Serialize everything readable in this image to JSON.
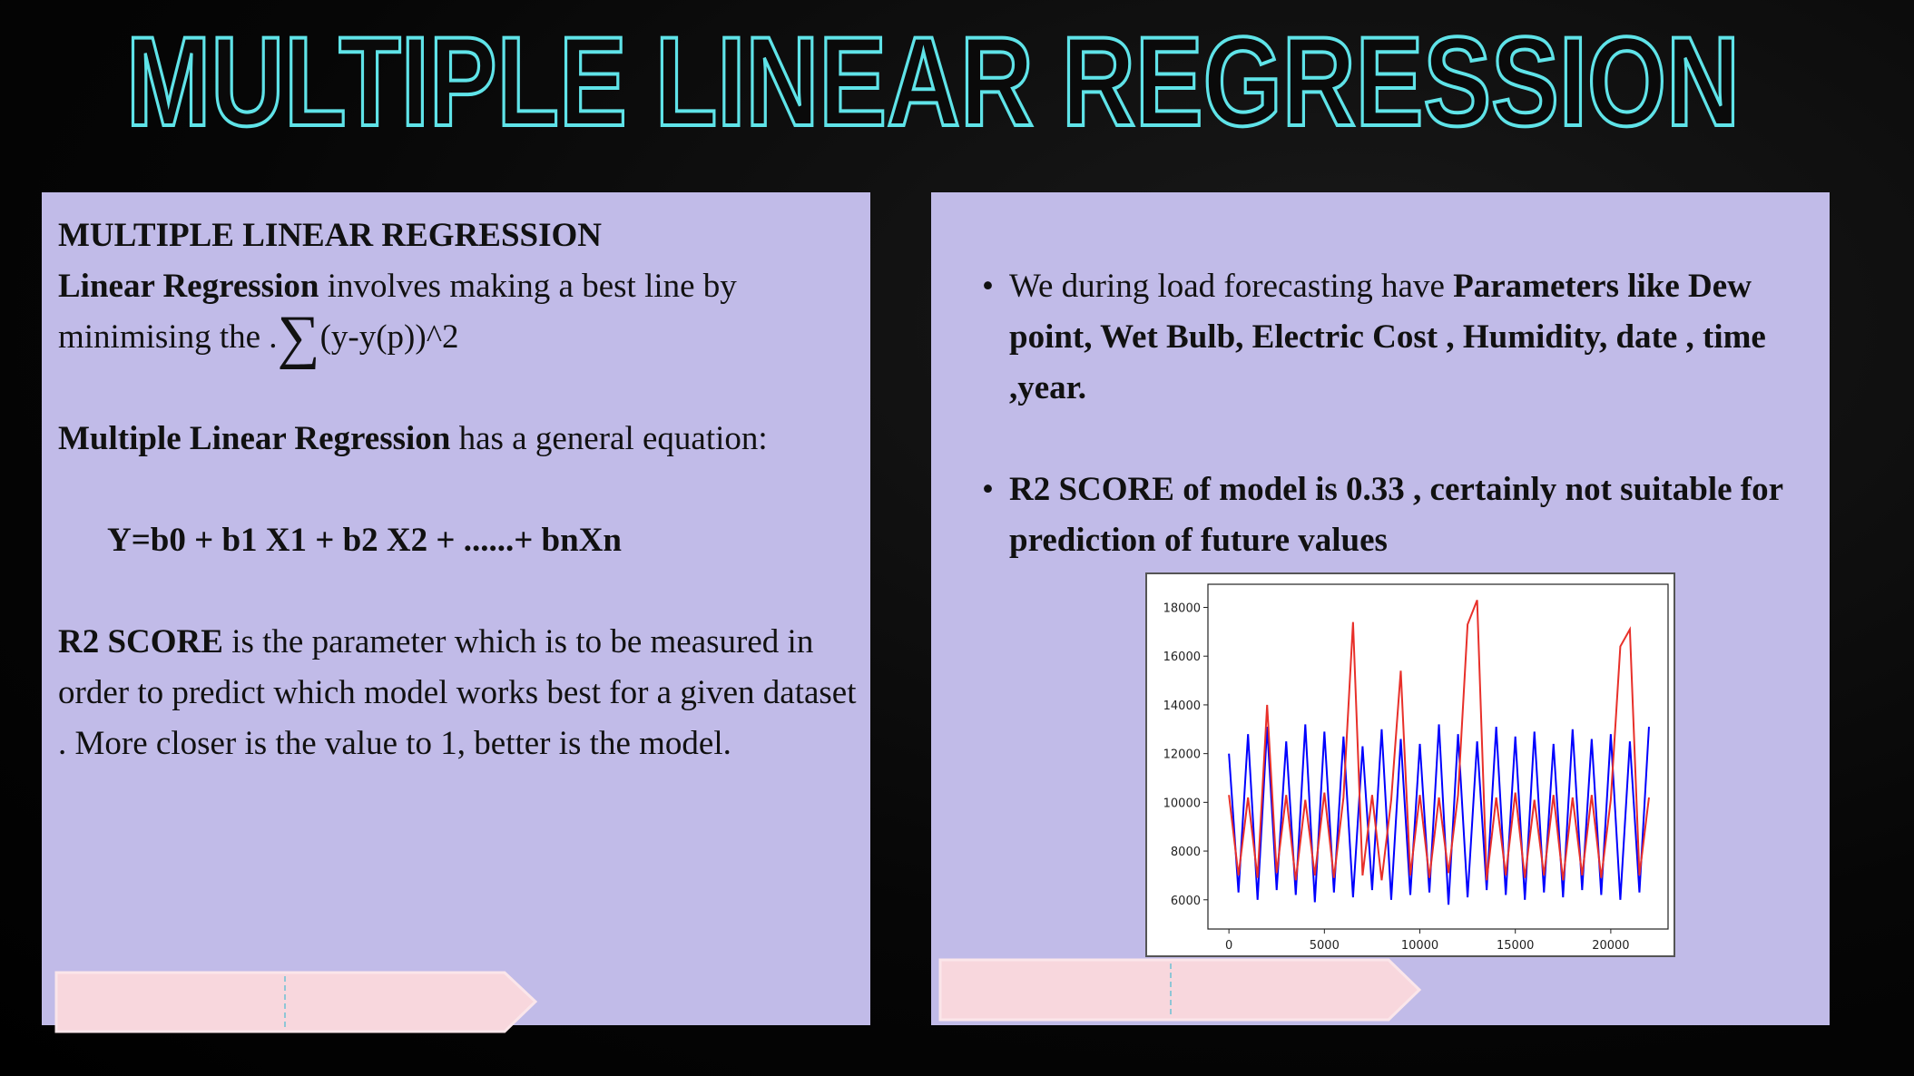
{
  "title": "MULTIPLE LINEAR REGRESSION",
  "left": {
    "heading": "MULTIPLE LINEAR REGRESSION",
    "p1": {
      "bold": "Linear Regression",
      "text": " involves making a best line by minimising the .",
      "symbol": "∑",
      "formula": "(y-y(p))^2"
    },
    "p2": {
      "bold": "Multiple Linear Regression",
      "text": " has a general equation:"
    },
    "equation": "Y=b0 + b1 X1 + b2 X2 + ......+ bnXn",
    "p3": {
      "bold": "R2 SCORE",
      "text": " is the parameter which is to be measured in order to predict which model works best for a given dataset . More closer is the value to 1, better is the model."
    }
  },
  "right": {
    "bullets": [
      {
        "text": "We during load forecasting have ",
        "bold": "Parameters like Dew point, Wet Bulb, Electric Cost , Humidity, date , time ,year."
      },
      {
        "bold": "R2 SCORE of model is 0.33 , certainly not suitable for prediction of future values"
      }
    ]
  },
  "chart_data": {
    "type": "line",
    "x": [
      0,
      500,
      1000,
      1500,
      2000,
      2500,
      3000,
      3500,
      4000,
      4500,
      5000,
      5500,
      6000,
      6500,
      7000,
      7500,
      8000,
      8500,
      9000,
      9500,
      10000,
      10500,
      11000,
      11500,
      12000,
      12500,
      13000,
      13500,
      14000,
      14500,
      15000,
      15500,
      16000,
      16500,
      17000,
      17500,
      18000,
      18500,
      19000,
      19500,
      20000,
      20500,
      21000,
      21500,
      22000
    ],
    "series": [
      {
        "color": "#0000ff",
        "values": [
          12000,
          6300,
          12800,
          6000,
          13100,
          6400,
          12500,
          6200,
          13200,
          5900,
          12900,
          6300,
          12700,
          6100,
          12300,
          6400,
          13000,
          6000,
          12600,
          6200,
          12400,
          6300,
          13200,
          5800,
          12800,
          6100,
          12500,
          6400,
          13100,
          6200,
          12700,
          6000,
          12900,
          6300,
          12400,
          6100,
          13000,
          6400,
          12600,
          6200,
          12800,
          6000,
          12500,
          6300,
          13100
        ]
      },
      {
        "color": "#e8302a",
        "values": [
          10300,
          7000,
          10200,
          6900,
          14000,
          7100,
          10300,
          6800,
          10100,
          7000,
          10400,
          6900,
          10200,
          17400,
          7000,
          10300,
          6800,
          10100,
          15400,
          7000,
          10300,
          6900,
          10200,
          7100,
          10300,
          17300,
          18300,
          6800,
          10200,
          7000,
          10400,
          6900,
          10100,
          7000,
          10300,
          6800,
          10200,
          7000,
          10300,
          6900,
          10100,
          16400,
          17100,
          7000,
          10200
        ]
      }
    ],
    "xlim": [
      -1100,
      23000
    ],
    "ylim": [
      4800,
      18950
    ],
    "xticks": [
      0,
      5000,
      10000,
      15000,
      20000
    ],
    "yticks": [
      6000,
      8000,
      10000,
      12000,
      14000,
      16000,
      18000
    ]
  }
}
